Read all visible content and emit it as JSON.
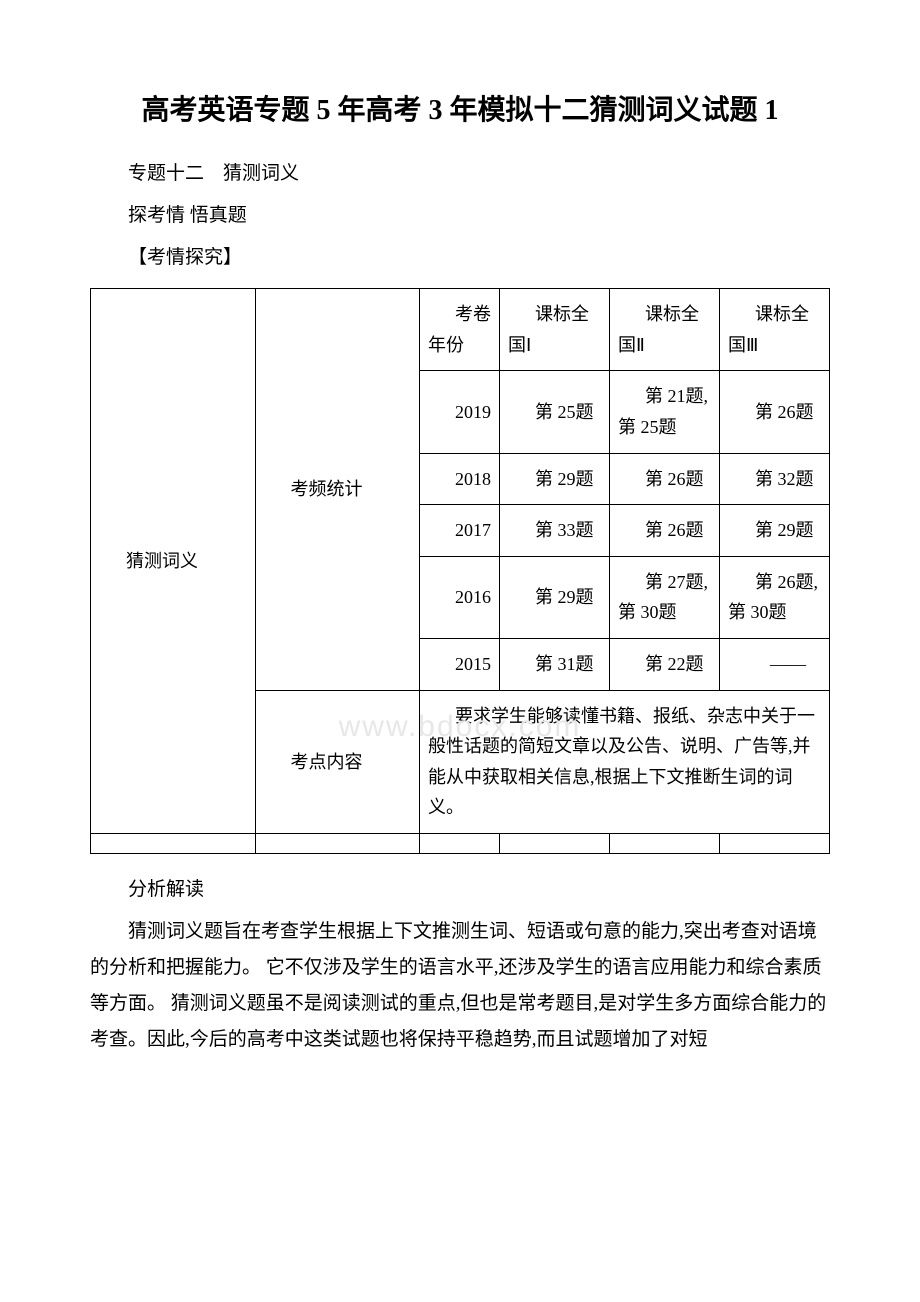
{
  "title": "高考英语专题 5 年高考 3 年模拟十二猜测词义试题 1",
  "subtitle": "专题十二　猜测词义",
  "subhead": "探考情 悟真题",
  "section_label": "【考情探究】",
  "watermark": "www.bdocx.com",
  "table": {
    "row_label": "猜测词义",
    "freq_label": "考频统计",
    "content_label": "考点内容",
    "header": {
      "paper_year": "考卷\n年份",
      "c1": "课标全国Ⅰ",
      "c2": "课标全国Ⅱ",
      "c3": "课标全国Ⅲ"
    },
    "rows": [
      {
        "year": "2019",
        "c1": "第 25题",
        "c2": "第 21题,第 25题",
        "c3": "第 26题"
      },
      {
        "year": "2018",
        "c1": "第 29题",
        "c2": "第 26题",
        "c3": "第 32题"
      },
      {
        "year": "2017",
        "c1": "第 33题",
        "c2": "第 26题",
        "c3": "第 29题"
      },
      {
        "year": "2016",
        "c1": "第 29题",
        "c2": "第 27题,第 30题",
        "c3": "第 26题,第 30题"
      },
      {
        "year": "2015",
        "c1": "第 31题",
        "c2": "第 22题",
        "c3": "——"
      }
    ],
    "content_text": "要求学生能够读懂书籍、报纸、杂志中关于一般性话题的简短文章以及公告、说明、广告等,并能从中获取相关信息,根据上下文推断生词的词义。"
  },
  "analysis_heading": "分析解读",
  "analysis_body": "猜测词义题旨在考查学生根据上下文推测生词、短语或句意的能力,突出考查对语境的分析和把握能力。 它不仅涉及学生的语言水平,还涉及学生的语言应用能力和综合素质等方面。 猜测词义题虽不是阅读测试的重点,但也是常考题目,是对学生多方面综合能力的考查。因此,今后的高考中这类试题也将保持平稳趋势,而且试题增加了对短"
}
